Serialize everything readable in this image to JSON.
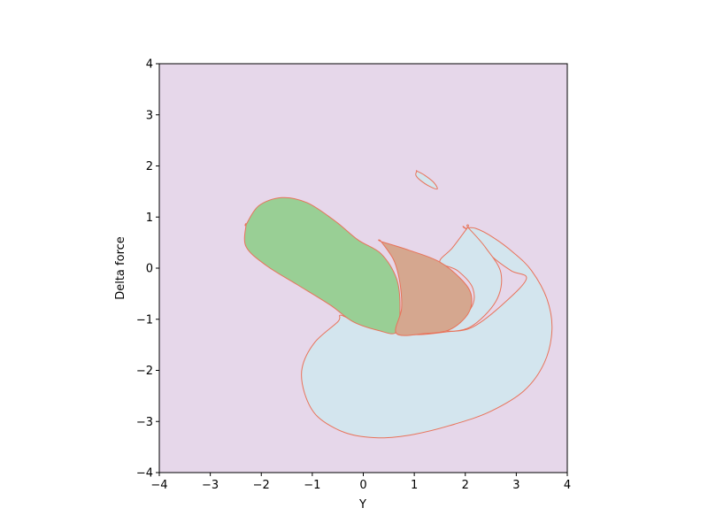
{
  "chart_data": {
    "type": "contour",
    "title": "",
    "xlabel": "Y",
    "ylabel": "Delta force",
    "xlim": [
      -4,
      4
    ],
    "ylim": [
      -4,
      4
    ],
    "x_ticks": [
      -4,
      -3,
      -2,
      -1,
      0,
      1,
      2,
      3,
      4
    ],
    "y_ticks": [
      -4,
      -3,
      -2,
      -1,
      0,
      1,
      2,
      3,
      4
    ],
    "x_tick_labels": [
      "−4",
      "−3",
      "−2",
      "−1",
      "0",
      "1",
      "2",
      "3",
      "4"
    ],
    "y_tick_labels": [
      "−4",
      "−3",
      "−2",
      "−1",
      "0",
      "1",
      "2",
      "3",
      "4"
    ],
    "grid": false,
    "legend": "none",
    "colors": {
      "background_level": "#e6d7ea",
      "lightblue_level": "#d3e5ee",
      "green_level": "#99cf95",
      "brown_level": "#d5a78f",
      "contour_line": "#e8735a"
    },
    "regions": [
      {
        "color": "lightblue_level",
        "points": [
          [
            2.0,
            0.78
          ],
          [
            2.2,
            0.78
          ],
          [
            2.55,
            0.6
          ],
          [
            2.95,
            0.3
          ],
          [
            3.3,
            -0.05
          ],
          [
            3.6,
            -0.6
          ],
          [
            3.7,
            -1.2
          ],
          [
            3.55,
            -1.85
          ],
          [
            3.15,
            -2.4
          ],
          [
            2.5,
            -2.8
          ],
          [
            1.8,
            -3.05
          ],
          [
            1.0,
            -3.25
          ],
          [
            0.3,
            -3.32
          ],
          [
            -0.35,
            -3.22
          ],
          [
            -0.9,
            -2.9
          ],
          [
            -1.15,
            -2.45
          ],
          [
            -1.2,
            -1.95
          ],
          [
            -0.95,
            -1.45
          ],
          [
            -0.5,
            -1.05
          ],
          [
            -0.45,
            -0.92
          ],
          [
            -0.2,
            -1.02
          ],
          [
            0.45,
            -1.2
          ],
          [
            1.0,
            -1.3
          ],
          [
            1.6,
            -1.25
          ],
          [
            2.15,
            -1.15
          ],
          [
            2.8,
            -0.65
          ],
          [
            3.2,
            -0.2
          ],
          [
            2.9,
            -0.05
          ],
          [
            2.5,
            0.25
          ],
          [
            2.0,
            0.78
          ]
        ]
      },
      {
        "color": "lightblue_level",
        "points": [
          [
            2.05,
            0.8
          ],
          [
            1.75,
            0.4
          ],
          [
            1.5,
            0.12
          ],
          [
            1.85,
            -0.05
          ],
          [
            2.15,
            -0.4
          ],
          [
            2.1,
            -0.8
          ],
          [
            1.6,
            -1.2
          ],
          [
            2.1,
            -1.15
          ],
          [
            2.6,
            -0.65
          ],
          [
            2.7,
            -0.1
          ],
          [
            2.4,
            0.4
          ],
          [
            2.05,
            0.8
          ]
        ]
      },
      {
        "color": "lightblue_level",
        "points": [
          [
            1.05,
            1.9
          ],
          [
            1.2,
            1.82
          ],
          [
            1.38,
            1.68
          ],
          [
            1.45,
            1.55
          ],
          [
            1.3,
            1.6
          ],
          [
            1.12,
            1.72
          ],
          [
            1.03,
            1.82
          ],
          [
            1.05,
            1.9
          ]
        ]
      },
      {
        "color": "green_level",
        "points": [
          [
            -2.3,
            0.85
          ],
          [
            -2.05,
            1.22
          ],
          [
            -1.6,
            1.38
          ],
          [
            -1.1,
            1.28
          ],
          [
            -0.55,
            0.92
          ],
          [
            -0.1,
            0.55
          ],
          [
            0.35,
            0.28
          ],
          [
            0.65,
            -0.2
          ],
          [
            0.72,
            -0.75
          ],
          [
            0.65,
            -1.25
          ],
          [
            0.3,
            -1.22
          ],
          [
            -0.2,
            -1.05
          ],
          [
            -0.65,
            -0.72
          ],
          [
            -1.3,
            -0.32
          ],
          [
            -1.9,
            0.05
          ],
          [
            -2.3,
            0.42
          ],
          [
            -2.3,
            0.85
          ]
        ]
      },
      {
        "color": "brown_level",
        "points": [
          [
            0.35,
            0.52
          ],
          [
            0.9,
            0.35
          ],
          [
            1.5,
            0.12
          ],
          [
            1.95,
            -0.25
          ],
          [
            2.12,
            -0.55
          ],
          [
            2.05,
            -0.9
          ],
          [
            1.7,
            -1.2
          ],
          [
            1.2,
            -1.28
          ],
          [
            0.65,
            -1.28
          ],
          [
            0.75,
            -0.8
          ],
          [
            0.72,
            -0.3
          ],
          [
            0.6,
            0.15
          ],
          [
            0.35,
            0.52
          ]
        ]
      }
    ]
  }
}
